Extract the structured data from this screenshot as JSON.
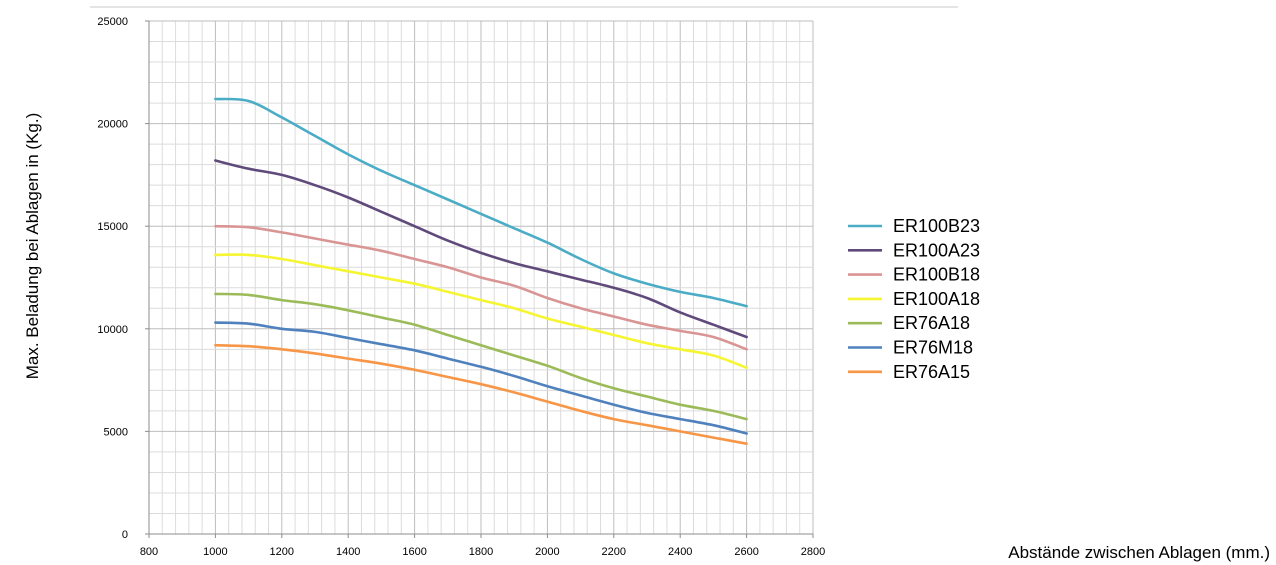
{
  "chart_data": {
    "type": "line",
    "title": "",
    "xlabel": "Abstände zwischen Ablagen (mm.)",
    "ylabel": "Max. Beladung bei Ablagen in (Kg.)",
    "xlim": [
      800,
      2800
    ],
    "ylim": [
      0,
      25000
    ],
    "x_ticks": [
      "800",
      "1000",
      "1200",
      "1400",
      "1600",
      "1800",
      "2000",
      "2200",
      "2400",
      "2600",
      "2800"
    ],
    "y_ticks": [
      "0",
      "5000",
      "10000",
      "15000",
      "20000",
      "25000"
    ],
    "grid": true,
    "legend_position": "right",
    "x": [
      1000,
      1100,
      1200,
      1300,
      1400,
      1500,
      1600,
      1700,
      1800,
      1900,
      2000,
      2100,
      2200,
      2300,
      2400,
      2500,
      2600
    ],
    "series": [
      {
        "name": "ER100B23",
        "color": "#4BACC6",
        "values": [
          21200,
          21100,
          20300,
          19400,
          18500,
          17700,
          17000,
          16300,
          15600,
          14900,
          14200,
          13400,
          12700,
          12200,
          11800,
          11500,
          11100
        ]
      },
      {
        "name": "ER100A23",
        "color": "#604A7B",
        "values": [
          18200,
          17800,
          17500,
          17000,
          16400,
          15700,
          15000,
          14300,
          13700,
          13200,
          12800,
          12400,
          12000,
          11500,
          10800,
          10200,
          9600
        ]
      },
      {
        "name": "ER100B18",
        "color": "#D99594",
        "values": [
          15000,
          14950,
          14700,
          14400,
          14100,
          13800,
          13400,
          13000,
          12500,
          12100,
          11500,
          11000,
          10600,
          10200,
          9900,
          9600,
          9000
        ]
      },
      {
        "name": "ER100A18",
        "color": "#F5F531",
        "values": [
          13600,
          13600,
          13400,
          13100,
          12800,
          12500,
          12200,
          11800,
          11400,
          11000,
          10500,
          10100,
          9700,
          9300,
          9000,
          8700,
          8100
        ]
      },
      {
        "name": "ER76A18",
        "color": "#9BBB59",
        "values": [
          11700,
          11650,
          11400,
          11200,
          10900,
          10550,
          10200,
          9700,
          9200,
          8700,
          8200,
          7600,
          7100,
          6700,
          6300,
          6000,
          5600
        ]
      },
      {
        "name": "ER76M18",
        "color": "#4F81BD",
        "values": [
          10300,
          10250,
          10000,
          9850,
          9550,
          9250,
          8950,
          8550,
          8150,
          7700,
          7200,
          6750,
          6300,
          5900,
          5600,
          5300,
          4900
        ]
      },
      {
        "name": "ER76A15",
        "color": "#F79646",
        "values": [
          9200,
          9150,
          9000,
          8800,
          8550,
          8300,
          8000,
          7650,
          7300,
          6900,
          6450,
          6000,
          5600,
          5300,
          5000,
          4700,
          4400
        ]
      }
    ]
  }
}
